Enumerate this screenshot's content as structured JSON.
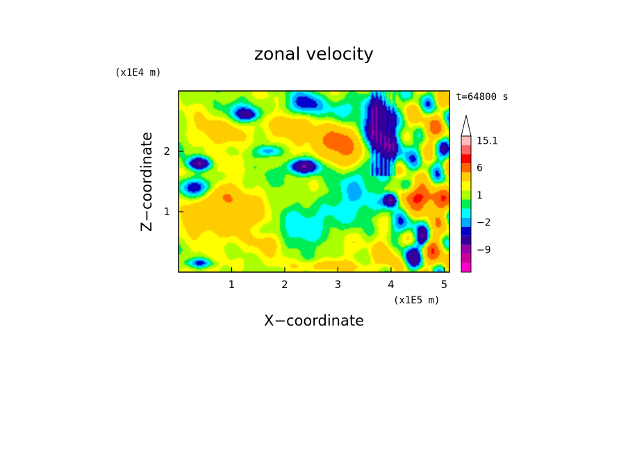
{
  "chart_data": {
    "type": "heatmap",
    "title": "zonal velocity",
    "xlabel": "X−coordinate",
    "ylabel": "Z−coordinate",
    "x_unit": "(x1E5 m)",
    "y_unit": "(x1E4 m)",
    "time_label": "t=64800 s",
    "xlim": [
      0,
      5.1
    ],
    "ylim": [
      0,
      3.0
    ],
    "x_ticks": [
      {
        "value": 1,
        "label": "1"
      },
      {
        "value": 2,
        "label": "2"
      },
      {
        "value": 3,
        "label": "3"
      },
      {
        "value": 4,
        "label": "4"
      },
      {
        "value": 5,
        "label": "5"
      }
    ],
    "y_ticks": [
      {
        "value": 1,
        "label": "1"
      },
      {
        "value": 2,
        "label": "2"
      }
    ],
    "colorbar": {
      "levels": [
        -15,
        -12,
        -9,
        -6,
        -3,
        -2,
        -1,
        0,
        1,
        2,
        3,
        6,
        9,
        12,
        15.1
      ],
      "colors": [
        "#ff00cc",
        "#cc0099",
        "#9900aa",
        "#330099",
        "#0000cc",
        "#00aaff",
        "#00ffff",
        "#00ee55",
        "#aaff00",
        "#ffff00",
        "#ffcc00",
        "#ff6600",
        "#ff0000",
        "#ff6666",
        "#ffbbbb"
      ],
      "extend_max_color": "#ffffff",
      "labels": [
        {
          "value": 15.1,
          "label": "15.1"
        },
        {
          "value": 6,
          "label": "6"
        },
        {
          "value": 1,
          "label": "1"
        },
        {
          "value": -2,
          "label": "−2"
        },
        {
          "value": -9,
          "label": "−9"
        }
      ]
    },
    "field_background": 1.8,
    "field_features": [
      {
        "x": 0.2,
        "z": 2.6,
        "rx": 0.35,
        "rz": 0.25,
        "u": 0.5
      },
      {
        "x": 1.2,
        "z": 2.7,
        "rx": 0.35,
        "rz": 0.15,
        "u": -2.5
      },
      {
        "x": 0.9,
        "z": 2.3,
        "rx": 0.5,
        "rz": 0.2,
        "u": 3.5
      },
      {
        "x": 1.3,
        "z": 2.6,
        "rx": 0.2,
        "rz": 0.1,
        "u": -5.0
      },
      {
        "x": 2.4,
        "z": 2.8,
        "rx": 0.35,
        "rz": 0.22,
        "u": -4.5
      },
      {
        "x": 2.2,
        "z": 2.45,
        "rx": 0.4,
        "rz": 0.2,
        "u": 4.5
      },
      {
        "x": 2.9,
        "z": 2.2,
        "rx": 0.35,
        "rz": 0.2,
        "u": 5.0
      },
      {
        "x": 3.05,
        "z": 2.7,
        "rx": 0.3,
        "rz": 0.2,
        "u": -1.5
      },
      {
        "x": 1.7,
        "z": 2.0,
        "rx": 0.25,
        "rz": 0.1,
        "u": -3.5
      },
      {
        "x": 2.35,
        "z": 1.75,
        "rx": 0.28,
        "rz": 0.12,
        "u": -7.0
      },
      {
        "x": 0.4,
        "z": 1.8,
        "rx": 0.22,
        "rz": 0.1,
        "u": -7.0
      },
      {
        "x": 0.35,
        "z": 1.4,
        "rx": 0.35,
        "rz": 0.15,
        "u": -4.0
      },
      {
        "x": 0.8,
        "z": 1.3,
        "rx": 0.3,
        "rz": 0.2,
        "u": 4.0
      },
      {
        "x": 0.5,
        "z": 0.95,
        "rx": 0.45,
        "rz": 0.35,
        "u": 3.0
      },
      {
        "x": 1.3,
        "z": 1.05,
        "rx": 0.5,
        "rz": 0.3,
        "u": 3.0
      },
      {
        "x": 1.9,
        "z": 1.35,
        "rx": 0.6,
        "rz": 0.35,
        "u": 0.2
      },
      {
        "x": 2.6,
        "z": 0.85,
        "rx": 0.75,
        "rz": 0.45,
        "u": -1.4
      },
      {
        "x": 2.3,
        "z": 0.55,
        "rx": 0.5,
        "rz": 0.2,
        "u": -0.5
      },
      {
        "x": 1.0,
        "z": 0.6,
        "rx": 0.4,
        "rz": 0.2,
        "u": 2.2
      },
      {
        "x": 3.4,
        "z": 1.45,
        "rx": 0.45,
        "rz": 0.4,
        "u": -2.5
      },
      {
        "x": 3.2,
        "z": 1.95,
        "rx": 0.45,
        "rz": 0.25,
        "u": 5.0
      },
      {
        "x": 3.75,
        "z": 2.35,
        "rx": 0.3,
        "rz": 0.5,
        "u": -6.0
      },
      {
        "x": 4.3,
        "z": 2.1,
        "rx": 0.35,
        "rz": 0.3,
        "u": -2.0
      },
      {
        "x": 4.75,
        "z": 2.3,
        "rx": 0.3,
        "rz": 0.25,
        "u": 4.0
      },
      {
        "x": 4.9,
        "z": 1.9,
        "rx": 0.22,
        "rz": 0.25,
        "u": -2.0
      },
      {
        "x": 4.0,
        "z": 1.2,
        "rx": 0.14,
        "rz": 0.12,
        "u": -9.5
      },
      {
        "x": 4.45,
        "z": 1.25,
        "rx": 0.3,
        "rz": 0.15,
        "u": 8.0
      },
      {
        "x": 4.8,
        "z": 1.15,
        "rx": 0.3,
        "rz": 0.2,
        "u": 6.5
      },
      {
        "x": 4.2,
        "z": 0.75,
        "rx": 0.3,
        "rz": 0.2,
        "u": -3.0
      },
      {
        "x": 3.9,
        "z": 0.3,
        "rx": 0.25,
        "rz": 0.25,
        "u": 4.0
      },
      {
        "x": 4.4,
        "z": 0.25,
        "rx": 0.2,
        "rz": 0.22,
        "u": -5.0
      },
      {
        "x": 4.85,
        "z": 0.4,
        "rx": 0.3,
        "rz": 0.25,
        "u": 5.5
      },
      {
        "x": 4.6,
        "z": 0.55,
        "rx": 0.12,
        "rz": 0.15,
        "u": -6.0
      },
      {
        "x": 0.4,
        "z": 0.15,
        "rx": 0.25,
        "rz": 0.08,
        "u": -4.0
      },
      {
        "x": 1.7,
        "z": 0.5,
        "rx": 0.3,
        "rz": 0.15,
        "u": 2.5
      },
      {
        "x": 2.8,
        "z": 0.1,
        "rx": 0.6,
        "rz": 0.1,
        "u": 3.5
      },
      {
        "x": 3.3,
        "z": 0.45,
        "rx": 0.3,
        "rz": 0.2,
        "u": 1.5
      }
    ]
  }
}
